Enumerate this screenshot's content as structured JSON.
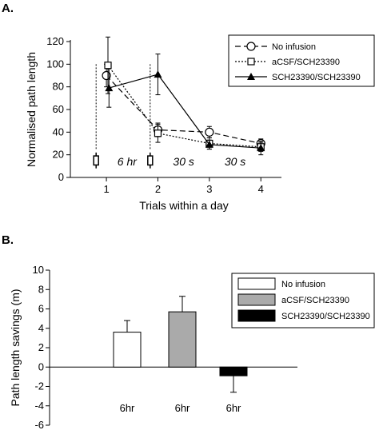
{
  "panels": {
    "a": {
      "label": "A."
    },
    "b": {
      "label": "B."
    }
  },
  "chart_data": [
    {
      "type": "line",
      "title": "",
      "xlabel": "Trials within a day",
      "ylabel": "Normalised path length",
      "xlim": [
        0.3,
        4.4
      ],
      "ylim": [
        0,
        120
      ],
      "xticks": [
        1,
        2,
        3,
        4
      ],
      "yticks": [
        0,
        20,
        40,
        60,
        80,
        100,
        120
      ],
      "legend_position": "top-right",
      "grid": false,
      "series": [
        {
          "name": "No infusion",
          "style": "dashed",
          "marker": "circle-open",
          "x": [
            1,
            2,
            3,
            4
          ],
          "y": [
            90,
            42,
            40,
            30
          ],
          "err": [
            10,
            6,
            5,
            4
          ]
        },
        {
          "name": "aCSF/SCH23390",
          "style": "dotted",
          "marker": "square-open",
          "x": [
            1.03,
            2,
            3,
            4
          ],
          "y": [
            99,
            39,
            30,
            27
          ],
          "err": [
            25,
            8,
            5,
            4
          ]
        },
        {
          "name": "SCH23390/SCH23390",
          "style": "solid",
          "marker": "triangle-filled",
          "x": [
            1.05,
            2,
            3,
            4
          ],
          "y": [
            79,
            91,
            29,
            26
          ],
          "err": [
            17,
            18,
            4,
            6
          ]
        }
      ],
      "infusion_markers": [
        {
          "x": 0.8
        },
        {
          "x": 1.85
        }
      ],
      "dashed_lines_x": [
        0.8,
        1.85
      ],
      "annotations": [
        {
          "text": "6 hr",
          "x": 1.4,
          "y": 14
        },
        {
          "text": "30 s",
          "x": 2.5,
          "y": 14
        },
        {
          "text": "30 s",
          "x": 3.5,
          "y": 14
        }
      ]
    },
    {
      "type": "bar",
      "title": "",
      "xlabel": "",
      "ylabel": "Path length savings (m)",
      "ylim": [
        -6,
        10
      ],
      "yticks": [
        -6,
        -4,
        -2,
        0,
        2,
        4,
        6,
        8,
        10
      ],
      "legend_position": "top-right",
      "grid": false,
      "categories": [
        "6hr",
        "6hr",
        "6hr"
      ],
      "series": [
        {
          "name": "No infusion",
          "color": "#ffffff",
          "value": 3.6,
          "err": 1.2
        },
        {
          "name": "aCSF/SCH23390",
          "color": "#aaaaaa",
          "value": 5.7,
          "err": 1.6
        },
        {
          "name": "SCH23390/SCH23390",
          "color": "#000000",
          "value": -0.9,
          "err": 1.7
        }
      ]
    }
  ]
}
